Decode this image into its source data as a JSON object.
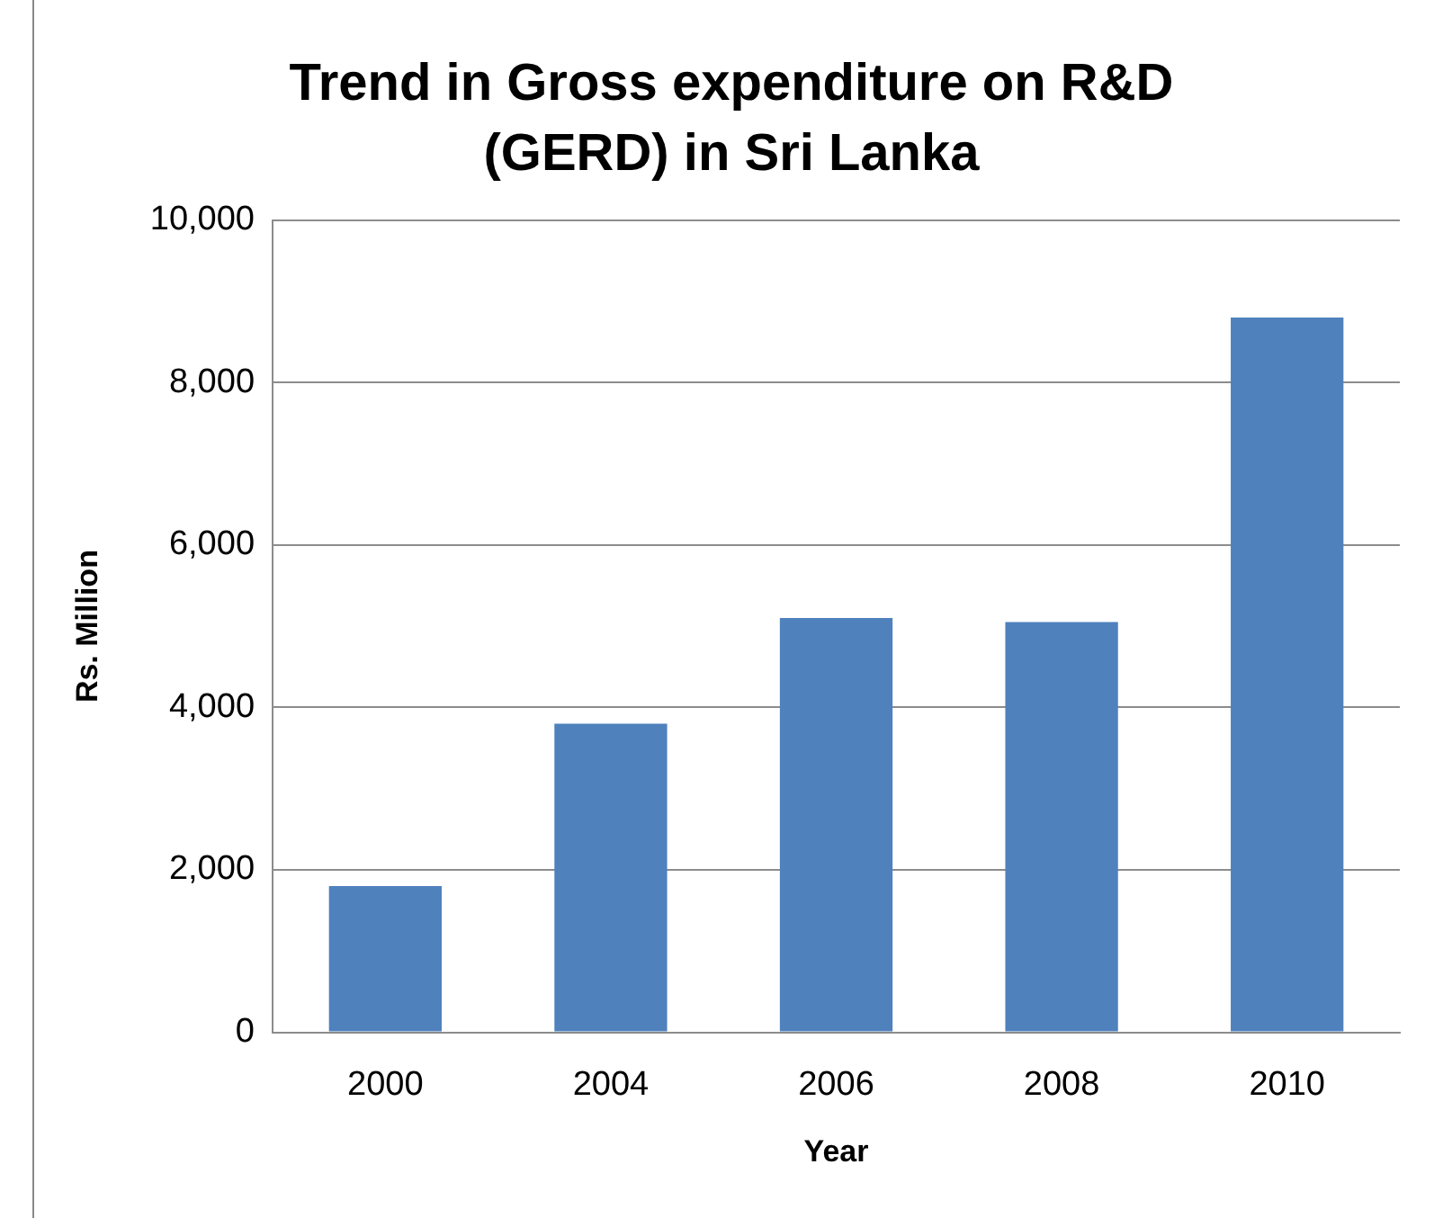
{
  "chart_data": {
    "type": "bar",
    "title": "Trend in Gross expenditure on R&D (GERD) in Sri Lanka",
    "xlabel": "Year",
    "ylabel": "Rs. Million",
    "categories": [
      "2000",
      "2004",
      "2006",
      "2008",
      "2010"
    ],
    "values": [
      1800,
      3800,
      5100,
      5050,
      8800
    ],
    "color": "#4f81bd",
    "ylim": [
      0,
      10000
    ],
    "yticks": [
      0,
      {
        "value": 2000,
        "label": "2,000"
      },
      {
        "value": 4000,
        "label": "4,000"
      },
      {
        "value": 6000,
        "label": "6,000"
      },
      {
        "value": 8000,
        "label": "8,000"
      },
      {
        "value": 10000,
        "label": "10,000"
      }
    ],
    "grid": "y",
    "legend": false
  }
}
